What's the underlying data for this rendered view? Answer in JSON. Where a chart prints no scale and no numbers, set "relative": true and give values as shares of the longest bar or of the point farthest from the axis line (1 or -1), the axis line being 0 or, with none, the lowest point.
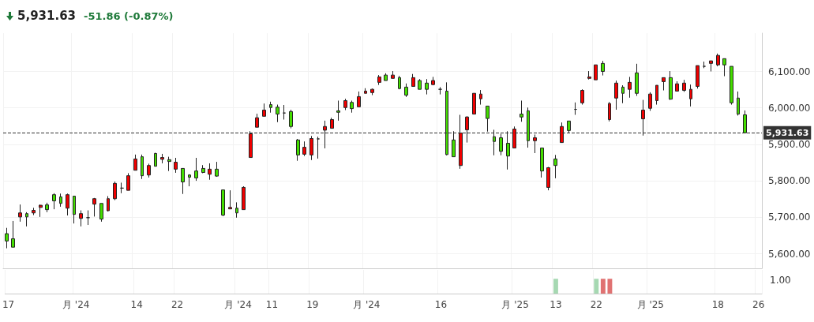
{
  "chart_data": [
    {
      "type": "candlestick",
      "title": "5,931.63",
      "subtitle": "-51.86 (-0.87%)",
      "categories": [
        null,
        null,
        null,
        null,
        null,
        null,
        null,
        null,
        null,
        null,
        null,
        null,
        null,
        null,
        null,
        null,
        null,
        null,
        null,
        null,
        null,
        null,
        null,
        null,
        null,
        null,
        null,
        null,
        null,
        null,
        null,
        null,
        null,
        null,
        null,
        null,
        null,
        null,
        null,
        null,
        null,
        null,
        null,
        null,
        null,
        null,
        null,
        null,
        null,
        null,
        null,
        null,
        null,
        null,
        null,
        null,
        null,
        null,
        null,
        null,
        null,
        null,
        null,
        null,
        null,
        null,
        null,
        null,
        null,
        null,
        null,
        null,
        null,
        null,
        null,
        null,
        null,
        null,
        null,
        null,
        null,
        null,
        null,
        null,
        null,
        null,
        null,
        null,
        null,
        null,
        null,
        null,
        null,
        null,
        null,
        null,
        null,
        null,
        null,
        null,
        null,
        null,
        null,
        null,
        null,
        null,
        null,
        null,
        null,
        null,
        null,
        null
      ],
      "ohlc": [
        [
          5655,
          5671,
          5615,
          5635
        ],
        [
          5641,
          5690,
          5618,
          5618
        ],
        [
          5701,
          5735,
          5688,
          5712
        ],
        [
          5710,
          5714,
          5675,
          5701
        ],
        [
          5712,
          5726,
          5706,
          5719
        ],
        [
          5727,
          5735,
          5701,
          5733
        ],
        [
          5734,
          5740,
          5714,
          5721
        ],
        [
          5762,
          5766,
          5722,
          5745
        ],
        [
          5756,
          5765,
          5729,
          5738
        ],
        [
          5725,
          5765,
          5705,
          5762
        ],
        [
          5758,
          5758,
          5683,
          5708
        ],
        [
          5697,
          5719,
          5675,
          5710
        ],
        [
          5699,
          5719,
          5679,
          5699
        ],
        [
          5736,
          5753,
          5702,
          5751
        ],
        [
          5738,
          5738,
          5688,
          5695
        ],
        [
          5718,
          5758,
          5716,
          5751
        ],
        [
          5751,
          5798,
          5747,
          5793
        ],
        [
          5780,
          5795,
          5766,
          5780
        ],
        [
          5774,
          5821,
          5774,
          5814
        ],
        [
          5829,
          5872,
          5829,
          5860
        ],
        [
          5866,
          5872,
          5805,
          5814
        ],
        [
          5816,
          5847,
          5809,
          5842
        ],
        [
          5875,
          5877,
          5840,
          5840
        ],
        [
          5859,
          5874,
          5848,
          5864
        ],
        [
          5858,
          5866,
          5827,
          5853
        ],
        [
          5832,
          5863,
          5822,
          5851
        ],
        [
          5834,
          5834,
          5764,
          5797
        ],
        [
          5816,
          5818,
          5785,
          5810
        ],
        [
          5827,
          5863,
          5800,
          5808
        ],
        [
          5834,
          5843,
          5821,
          5823
        ],
        [
          5818,
          5848,
          5803,
          5832
        ],
        [
          5832,
          5852,
          5811,
          5813
        ],
        [
          5775,
          5775,
          5703,
          5706
        ],
        [
          5723,
          5774,
          5723,
          5727
        ],
        [
          5725,
          5741,
          5699,
          5712
        ],
        [
          5721,
          5785,
          5721,
          5782
        ],
        [
          5864,
          5936,
          5864,
          5929
        ],
        [
          5947,
          5984,
          5947,
          5973
        ],
        [
          5977,
          6012,
          5977,
          5994
        ],
        [
          6009,
          6017,
          5987,
          6001
        ],
        [
          6002,
          6009,
          5961,
          5983
        ],
        [
          5986,
          6008,
          5968,
          5986
        ],
        [
          5990,
          5995,
          5944,
          5949
        ],
        [
          5912,
          5915,
          5855,
          5871
        ],
        [
          5873,
          5908,
          5868,
          5892
        ],
        [
          5871,
          5923,
          5857,
          5916
        ],
        [
          5915,
          5921,
          5861,
          5915
        ],
        [
          5939,
          5965,
          5889,
          5949
        ],
        [
          5944,
          5973,
          5944,
          5968
        ],
        [
          5992,
          6020,
          5965,
          5988
        ],
        [
          6001,
          6025,
          5994,
          6020
        ],
        [
          6015,
          6020,
          5987,
          5998
        ],
        [
          6003,
          6045,
          6003,
          6031
        ],
        [
          6040,
          6054,
          6040,
          6046
        ],
        [
          6042,
          6053,
          6035,
          6051
        ],
        [
          6070,
          6090,
          6063,
          6085
        ],
        [
          6090,
          6095,
          6075,
          6075
        ],
        [
          6081,
          6101,
          6081,
          6090
        ],
        [
          6083,
          6088,
          6051,
          6053
        ],
        [
          6057,
          6067,
          6030,
          6035
        ],
        [
          6059,
          6093,
          6059,
          6083
        ],
        [
          6075,
          6079,
          6051,
          6051
        ],
        [
          6068,
          6079,
          6037,
          6051
        ],
        [
          6064,
          6085,
          6062,
          6075
        ],
        [
          6051,
          6057,
          6037,
          6051
        ],
        [
          6046,
          6070,
          5870,
          5872
        ],
        [
          5912,
          5936,
          5866,
          5866
        ],
        [
          5842,
          5981,
          5833,
          5931
        ],
        [
          5940,
          5977,
          5905,
          5975
        ],
        [
          5983,
          6040,
          5983,
          6040
        ],
        [
          6025,
          6049,
          6009,
          6038
        ],
        [
          6005,
          6005,
          5935,
          5971
        ],
        [
          5921,
          5940,
          5870,
          5908
        ],
        [
          5918,
          5929,
          5870,
          5881
        ],
        [
          5903,
          5936,
          5831,
          5868
        ],
        [
          5890,
          5949,
          5890,
          5942
        ],
        [
          5983,
          6020,
          5962,
          5975
        ],
        [
          5992,
          6001,
          5891,
          5910
        ],
        [
          5910,
          5927,
          5876,
          5918
        ],
        [
          5890,
          5890,
          5809,
          5827
        ],
        [
          5782,
          5838,
          5774,
          5836
        ],
        [
          5860,
          5871,
          5807,
          5842
        ],
        [
          5905,
          5960,
          5905,
          5949
        ],
        [
          5964,
          5964,
          5932,
          5938
        ],
        [
          5996,
          6015,
          5981,
          5996
        ],
        [
          6014,
          6051,
          6009,
          6048
        ],
        [
          6081,
          6101,
          6078,
          6085
        ],
        [
          6077,
          6118,
          6077,
          6118
        ],
        [
          6122,
          6129,
          6089,
          6100
        ],
        [
          5968,
          6016,
          5963,
          6012
        ],
        [
          6027,
          6075,
          5995,
          6068
        ],
        [
          6057,
          6062,
          6013,
          6040
        ],
        [
          6051,
          6085,
          6028,
          6070
        ],
        [
          6096,
          6121,
          6033,
          6040
        ],
        [
          5970,
          6022,
          5924,
          5994
        ],
        [
          5999,
          6043,
          5992,
          6038
        ],
        [
          6020,
          6062,
          6009,
          6062
        ],
        [
          6072,
          6083,
          6048,
          6083
        ],
        [
          6083,
          6101,
          6022,
          6024
        ],
        [
          6046,
          6073,
          6046,
          6066
        ],
        [
          6048,
          6077,
          6044,
          6068
        ],
        [
          6025,
          6064,
          6004,
          6051
        ],
        [
          6059,
          6116,
          6053,
          6116
        ],
        [
          6114,
          6127,
          6109,
          6114
        ],
        [
          6122,
          6129,
          6100,
          6129
        ],
        [
          6118,
          6149,
          6114,
          6144
        ],
        [
          6135,
          6135,
          6087,
          6118
        ],
        [
          6114,
          6114,
          6009,
          6014
        ],
        [
          6027,
          6045,
          5979,
          5983
        ],
        [
          5981,
          5993,
          5931.63,
          5931.63
        ],
        null,
        null
      ],
      "colors": [
        "#44dd00",
        "#44dd00",
        "#f00000",
        "#44dd00",
        "#f00000",
        "#f00000",
        "#44dd00",
        "#44dd00",
        "#44dd00",
        "#f00000",
        "#44dd00",
        "#f00000",
        "#222222",
        "#f00000",
        "#44dd00",
        "#f00000",
        "#f00000",
        "#222222",
        "#f00000",
        "#f00000",
        "#44dd00",
        "#f00000",
        "#44dd00",
        "#f00000",
        "#44dd00",
        "#f00000",
        "#44dd00",
        "#44dd00",
        "#44dd00",
        "#44dd00",
        "#f00000",
        "#44dd00",
        "#44dd00",
        "#f00000",
        "#44dd00",
        "#f00000",
        "#f00000",
        "#f00000",
        "#f00000",
        "#44dd00",
        "#44dd00",
        "#222222",
        "#44dd00",
        "#44dd00",
        "#f00000",
        "#f00000",
        "#222222",
        "#f00000",
        "#f00000",
        "#44dd00",
        "#f00000",
        "#44dd00",
        "#f00000",
        "#f00000",
        "#f00000",
        "#f00000",
        "#44dd00",
        "#f00000",
        "#44dd00",
        "#44dd00",
        "#f00000",
        "#44dd00",
        "#44dd00",
        "#f00000",
        "#222222",
        "#44dd00",
        "#44dd00",
        "#f00000",
        "#f00000",
        "#f00000",
        "#f00000",
        "#44dd00",
        "#44dd00",
        "#44dd00",
        "#44dd00",
        "#f00000",
        "#44dd00",
        "#44dd00",
        "#f00000",
        "#44dd00",
        "#f00000",
        "#44dd00",
        "#f00000",
        "#44dd00",
        "#222222",
        "#f00000",
        "#f00000",
        "#f00000",
        "#44dd00",
        "#f00000",
        "#f00000",
        "#44dd00",
        "#f00000",
        "#44dd00",
        "#f00000",
        "#f00000",
        "#f00000",
        "#f00000",
        "#44dd00",
        "#f00000",
        "#f00000",
        "#f00000",
        "#f00000",
        "#222222",
        "#f00000",
        "#f00000",
        "#44dd00",
        "#44dd00",
        "#44dd00",
        "#44dd00",
        null,
        null
      ],
      "ylim": [
        5560,
        6205
      ],
      "yticks": [
        {
          "value": 5600,
          "label": "5,600.00"
        },
        {
          "value": 5700,
          "label": "5,700.00"
        },
        {
          "value": 5800,
          "label": "5,800.00"
        },
        {
          "value": 5900,
          "label": "5,900.00"
        },
        {
          "value": 6000,
          "label": "6,000.00"
        },
        {
          "value": 6100,
          "label": "6,100.00"
        }
      ],
      "ref_lines": [
        {
          "axis": "y",
          "value": 5931.63,
          "label": "5,931.63",
          "color": "#333333",
          "line_style": "dashed"
        }
      ],
      "grid": true,
      "tick_labels": "y"
    },
    {
      "type": "bar",
      "relative": true,
      "categories": [
        "17",
        null,
        null,
        null,
        null,
        null,
        null,
        null,
        null,
        null,
        "月 '24",
        null,
        null,
        null,
        null,
        null,
        null,
        null,
        null,
        "14",
        null,
        null,
        null,
        null,
        null,
        "22",
        null,
        null,
        null,
        null,
        null,
        null,
        null,
        null,
        "月 '24",
        null,
        null,
        null,
        null,
        "11",
        null,
        null,
        null,
        null,
        null,
        "19",
        null,
        null,
        null,
        null,
        null,
        null,
        null,
        "月 '24",
        null,
        null,
        null,
        null,
        null,
        null,
        null,
        null,
        null,
        null,
        "16",
        null,
        null,
        null,
        null,
        null,
        null,
        null,
        null,
        null,
        null,
        "月 '25",
        null,
        null,
        null,
        null,
        null,
        "13",
        null,
        null,
        null,
        null,
        null,
        "22",
        null,
        null,
        null,
        null,
        null,
        null,
        null,
        "月 '25",
        null,
        null,
        null,
        null,
        null,
        null,
        null,
        null,
        null,
        "18",
        null,
        null,
        null,
        null,
        null,
        "26"
      ],
      "values": [
        null,
        null,
        null,
        null,
        null,
        null,
        null,
        null,
        null,
        null,
        null,
        null,
        null,
        null,
        null,
        null,
        null,
        null,
        null,
        null,
        null,
        null,
        null,
        null,
        null,
        null,
        null,
        null,
        null,
        null,
        null,
        null,
        null,
        null,
        null,
        null,
        null,
        null,
        null,
        null,
        null,
        null,
        null,
        null,
        null,
        null,
        null,
        null,
        null,
        null,
        null,
        null,
        null,
        null,
        null,
        null,
        null,
        null,
        null,
        null,
        null,
        null,
        null,
        null,
        null,
        null,
        null,
        null,
        null,
        null,
        null,
        null,
        null,
        null,
        null,
        null,
        null,
        null,
        null,
        null,
        null,
        1,
        null,
        null,
        null,
        null,
        null,
        1,
        1,
        1,
        null,
        null,
        null,
        null,
        null,
        null,
        null,
        null,
        null,
        null,
        null,
        null,
        null,
        null,
        null,
        null,
        null,
        null,
        null,
        null,
        null,
        null
      ],
      "colors": [
        null,
        null,
        null,
        null,
        null,
        null,
        null,
        null,
        null,
        null,
        null,
        null,
        null,
        null,
        null,
        null,
        null,
        null,
        null,
        null,
        null,
        null,
        null,
        null,
        null,
        null,
        null,
        null,
        null,
        null,
        null,
        null,
        null,
        null,
        null,
        null,
        null,
        null,
        null,
        null,
        null,
        null,
        null,
        null,
        null,
        null,
        null,
        null,
        null,
        null,
        null,
        null,
        null,
        null,
        null,
        null,
        null,
        null,
        null,
        null,
        null,
        null,
        null,
        null,
        null,
        null,
        null,
        null,
        null,
        null,
        null,
        null,
        null,
        null,
        null,
        null,
        null,
        null,
        null,
        null,
        null,
        "#a6d8b2",
        null,
        null,
        null,
        null,
        null,
        "#a6d8b2",
        "#e07272",
        "#e07272",
        null,
        null,
        null,
        null,
        null,
        null,
        null,
        null,
        null,
        null,
        null,
        null,
        null,
        null,
        null,
        null,
        null,
        null,
        null,
        null,
        null,
        null
      ],
      "annotations": [
        "1.00"
      ],
      "grid": "x",
      "tick_labels": "x"
    }
  ]
}
